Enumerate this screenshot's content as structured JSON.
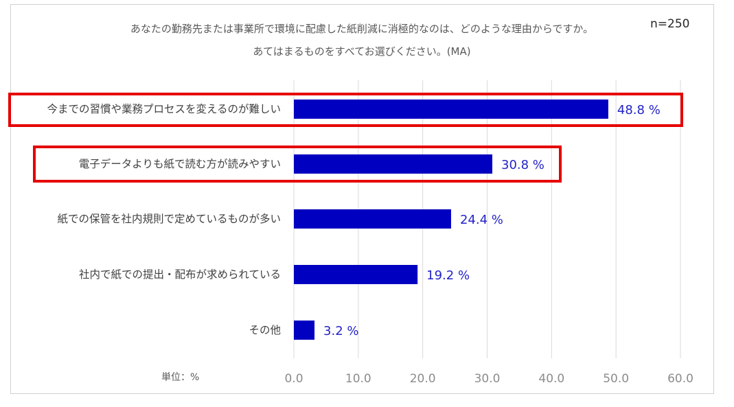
{
  "chart_data": {
    "type": "bar",
    "orientation": "horizontal",
    "title_lines": [
      "あなたの勤務先または事業所で環境に配慮した紙削減に消極的なのは、どのような理由からですか。",
      "あてはまるものをすべてお選びください。(MA)"
    ],
    "sample_size": "n=250",
    "unit_label": "単位：%",
    "categories": [
      "今までの習慣や業務プロセスを変えるのが難しい",
      "電子データよりも紙で読む方が読みやすい",
      "紙での保管を社内規則で定めているものが多い",
      "社内で紙での提出・配布が求められている",
      "その他"
    ],
    "values": [
      48.8,
      30.8,
      24.4,
      19.2,
      3.2
    ],
    "value_labels": [
      "48.8 %",
      "30.8 %",
      "24.4 %",
      "19.2 %",
      "3.2 %"
    ],
    "xlim": [
      0,
      60
    ],
    "ticks": [
      0,
      10,
      20,
      30,
      40,
      50,
      60
    ],
    "tick_labels": [
      "0.0",
      "10.0",
      "20.0",
      "30.0",
      "40.0",
      "50.0",
      "60.0"
    ],
    "grid": true,
    "highlighted_categories": [
      0,
      1
    ],
    "bar_color": "#0000c0",
    "highlight_color": "#e60000",
    "grid_color": "#d9d9d9"
  }
}
